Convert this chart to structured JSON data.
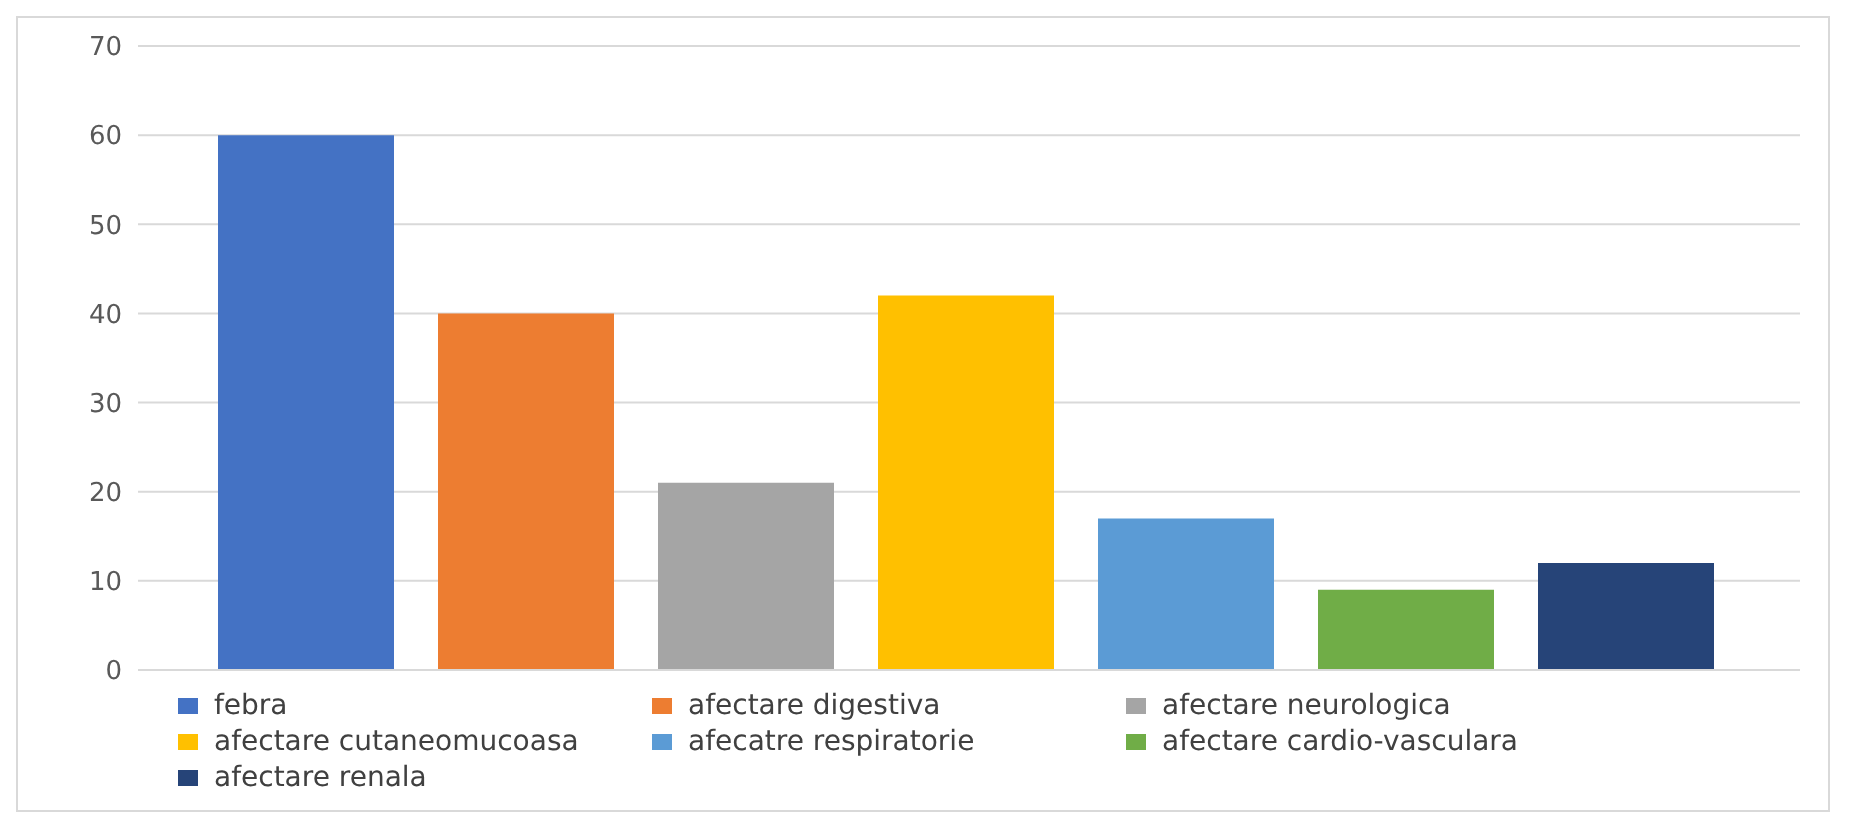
{
  "chart_data": {
    "type": "bar",
    "categories": [
      null
    ],
    "series": [
      {
        "name": "febra",
        "color": "#4472c4",
        "values": [
          60
        ]
      },
      {
        "name": "afectare digestiva",
        "color": "#ed7d31",
        "values": [
          40
        ]
      },
      {
        "name": "afectare neurologica",
        "color": "#a5a5a5",
        "values": [
          21
        ]
      },
      {
        "name": "afectare cutaneomucoasa",
        "color": "#ffc000",
        "values": [
          42
        ]
      },
      {
        "name": "afecatre respiratorie",
        "color": "#5b9bd5",
        "values": [
          17
        ]
      },
      {
        "name": "afectare cardio-vasculara",
        "color": "#70ad47",
        "values": [
          9
        ]
      },
      {
        "name": "afectare renala",
        "color": "#264478",
        "values": [
          12
        ]
      }
    ],
    "ylim": [
      0,
      70
    ],
    "yticks": [
      0,
      10,
      20,
      30,
      40,
      50,
      60,
      70
    ],
    "grid": "y",
    "legend": "bottom",
    "tick_labels": "y"
  }
}
